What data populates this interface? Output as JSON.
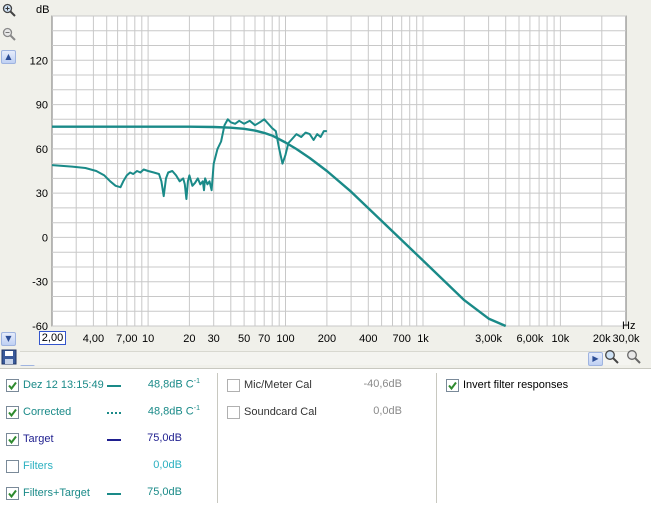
{
  "chart_data": {
    "type": "line",
    "ylabel": "dB",
    "xlabel": "Hz",
    "x_scale": "log",
    "xlim": [
      2.0,
      30000
    ],
    "ylim": [
      -60,
      150
    ],
    "y_ticks": [
      120,
      90,
      60,
      30,
      0,
      -30,
      -60
    ],
    "y_tick_labels": [
      "120",
      "90",
      "60",
      "30",
      "0",
      "-30",
      "-60"
    ],
    "x_ticks": [
      4,
      7,
      10,
      20,
      30,
      50,
      70,
      100,
      200,
      400,
      700,
      1000,
      3000,
      6000,
      10000,
      20000,
      30000
    ],
    "x_tick_labels": [
      "4,00",
      "7,00",
      "10",
      "20",
      "30",
      "50",
      "70",
      "100",
      "200",
      "400",
      "700",
      "1k",
      "3,00k",
      "6,00k",
      "10k",
      "20k",
      "30,0k"
    ],
    "x_start_label": "2,00",
    "grid": true,
    "series": [
      {
        "name": "Dez 12 13:15:49",
        "color": "#1a8a88",
        "x": [
          2,
          2.8,
          3.5,
          4.2,
          4.8,
          5.3,
          5.8,
          6.3,
          6.6,
          7,
          7.4,
          7.8,
          8.3,
          8.8,
          9.3,
          10,
          11,
          12,
          12.5,
          13,
          13.5,
          14,
          15,
          16,
          17,
          18,
          18.5,
          19,
          19.5,
          20,
          21,
          22,
          23,
          24,
          25,
          25.5,
          26,
          27,
          28,
          29,
          30,
          32,
          34,
          36,
          38,
          40,
          43,
          46,
          50,
          55,
          60,
          65,
          70,
          75,
          80,
          85,
          90,
          95,
          100,
          105,
          110,
          120,
          130,
          140,
          150,
          160,
          170,
          180,
          190,
          200
        ],
        "y": [
          49,
          48,
          47,
          45,
          42,
          38,
          35,
          34,
          38,
          42,
          44,
          43,
          45,
          44,
          46,
          45,
          44,
          43,
          38,
          28,
          40,
          44,
          45,
          42,
          38,
          40,
          36,
          26,
          38,
          42,
          35,
          37,
          40,
          36,
          38,
          32,
          40,
          36,
          38,
          32,
          50,
          60,
          65,
          76,
          80,
          78,
          77,
          79,
          77,
          79,
          76,
          78,
          80,
          77,
          74,
          72,
          60,
          50,
          56,
          64,
          66,
          70,
          68,
          71,
          70,
          66,
          70,
          68,
          72,
          72
        ]
      },
      {
        "name": "Filters+Target",
        "color": "#1a8a88",
        "x": [
          2,
          5,
          10,
          20,
          30,
          40,
          50,
          60,
          70,
          80,
          100,
          120,
          150,
          200,
          300,
          500,
          1000,
          2000,
          3000,
          4000
        ],
        "y": [
          75,
          75,
          75,
          75,
          74.8,
          74.3,
          73.6,
          72.4,
          70.8,
          69,
          64.3,
          59.9,
          53.8,
          45,
          31,
          11.2,
          -15.6,
          -42.5,
          -55,
          -60
        ]
      }
    ]
  },
  "legend": {
    "col1": [
      {
        "label": "Dez 12 13:15:49",
        "checked": true,
        "value": "48,8dB C",
        "sup": "-1",
        "color": "#1a8a88",
        "style": "solid"
      },
      {
        "label": "Corrected",
        "checked": true,
        "value": "48,8dB C",
        "sup": "-1",
        "color": "#1a8a88",
        "style": "dotted"
      },
      {
        "label": "Target",
        "checked": true,
        "value": "75,0dB",
        "sup": "",
        "color": "#1f1f8f",
        "style": "solid"
      },
      {
        "label": "Filters",
        "checked": false,
        "value": "0,0dB",
        "sup": "",
        "color": "#2ab0c0",
        "style": "none"
      },
      {
        "label": "Filters+Target",
        "checked": true,
        "value": "75,0dB",
        "sup": "",
        "color": "#1a8a88",
        "style": "solid"
      }
    ],
    "col2": [
      {
        "label": "Mic/Meter Cal",
        "checked": false,
        "value": "-40,6dB"
      },
      {
        "label": "Soundcard Cal",
        "checked": false,
        "value": "0,0dB"
      }
    ],
    "col3": [
      {
        "label": "Invert filter responses",
        "checked": true
      }
    ]
  },
  "colors": {
    "grid": "#c8c8c8",
    "plot_bg": "#ffffff",
    "window_bg": "#f0f0ea",
    "check": "#2e8a2e",
    "accent_blue": "#3355cc"
  },
  "icons": [
    "zoom-in-icon",
    "zoom-out-icon",
    "scroll-up-icon",
    "scroll-down-icon",
    "scroll-left-icon",
    "scroll-right-icon",
    "save-icon",
    "zoom-x-in-icon",
    "zoom-x-out-icon"
  ]
}
